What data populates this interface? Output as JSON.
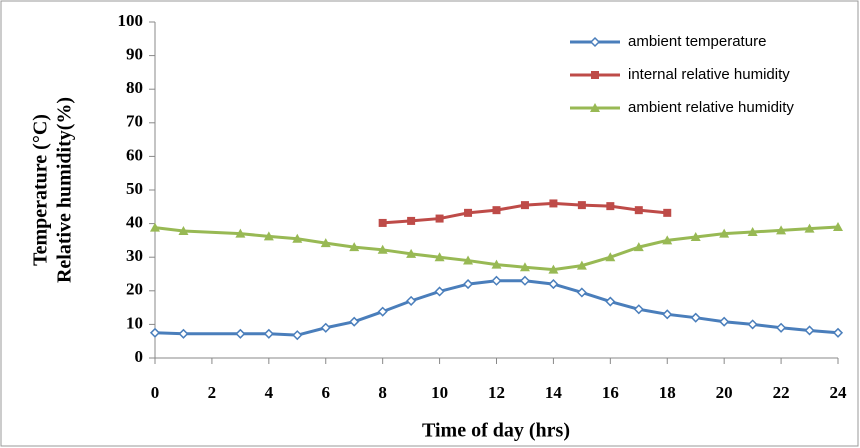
{
  "chart_data": {
    "type": "line",
    "x_label": "Time of  day (hrs)",
    "y_label": [
      "Temperature (°C)",
      "Relative humidity(%)"
    ],
    "x": [
      0,
      1,
      3,
      4,
      5,
      6,
      7,
      8,
      9,
      10,
      11,
      12,
      13,
      14,
      15,
      16,
      17,
      18,
      19,
      20,
      21,
      22,
      23,
      24
    ],
    "series": [
      {
        "name": "ambient temperature",
        "color": "#4a7ebb",
        "marker": "diamond",
        "values": [
          7.5,
          7.2,
          7.2,
          7.2,
          6.8,
          9,
          10.8,
          13.8,
          17,
          19.8,
          22,
          23,
          23,
          22,
          19.5,
          16.8,
          14.5,
          13,
          12,
          10.8,
          10,
          9,
          8.2,
          7.5
        ]
      },
      {
        "name": "internal relative humidity",
        "color": "#be4b48",
        "marker": "square",
        "values": [
          null,
          null,
          null,
          null,
          null,
          null,
          null,
          40.2,
          40.8,
          41.5,
          43.2,
          44,
          45.5,
          46,
          45.5,
          45.2,
          44,
          43.2,
          null,
          null,
          null,
          null,
          null,
          null
        ]
      },
      {
        "name": "ambient relative humidity",
        "color": "#98b954",
        "marker": "triangle",
        "values": [
          38.8,
          37.8,
          37,
          36.2,
          35.5,
          34.2,
          33,
          32.2,
          31,
          30,
          29,
          27.8,
          27,
          26.3,
          27.5,
          30,
          33,
          35,
          36,
          37,
          37.5,
          38,
          38.5,
          39
        ]
      }
    ],
    "xlim": [
      0,
      24
    ],
    "xticks": [
      0,
      2,
      4,
      6,
      8,
      10,
      12,
      14,
      16,
      18,
      20,
      22,
      24
    ],
    "ylim": [
      0,
      100
    ],
    "yticks": [
      0,
      10,
      20,
      30,
      40,
      50,
      60,
      70,
      80,
      90,
      100
    ],
    "grid": false,
    "legend": "top-right"
  }
}
